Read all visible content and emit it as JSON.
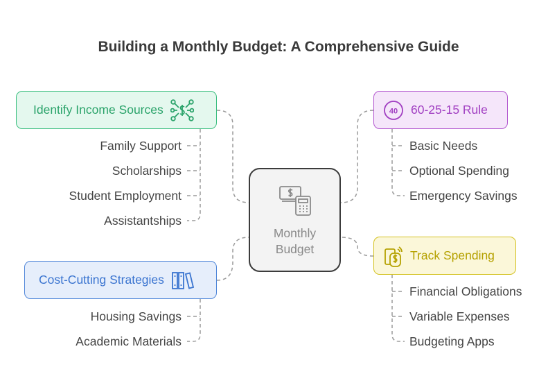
{
  "title": "Building a Monthly Budget: A Comprehensive Guide",
  "center": {
    "line1": "Monthly",
    "line2": "Budget",
    "icon": "money-calculator-icon"
  },
  "branches": {
    "income": {
      "label": "Identify Income Sources",
      "icon": "network-dollar-icon",
      "color": "#3cbf80",
      "items": [
        "Family Support",
        "Scholarships",
        "Student Employment",
        "Assistantships"
      ]
    },
    "rule": {
      "label": "60-25-15 Rule",
      "icon": "percent-badge-icon",
      "icon_text": "40",
      "color": "#b256cf",
      "items": [
        "Basic Needs",
        "Optional Spending",
        "Emergency Savings"
      ]
    },
    "cost": {
      "label": "Cost-Cutting Strategies",
      "icon": "books-icon",
      "color": "#4f86d9",
      "items": [
        "Housing Savings",
        "Academic Materials"
      ]
    },
    "track": {
      "label": "Track Spending",
      "icon": "phone-payment-icon",
      "color": "#d4c221",
      "items": [
        "Financial Obligations",
        "Variable Expenses",
        "Budgeting Apps"
      ]
    }
  }
}
